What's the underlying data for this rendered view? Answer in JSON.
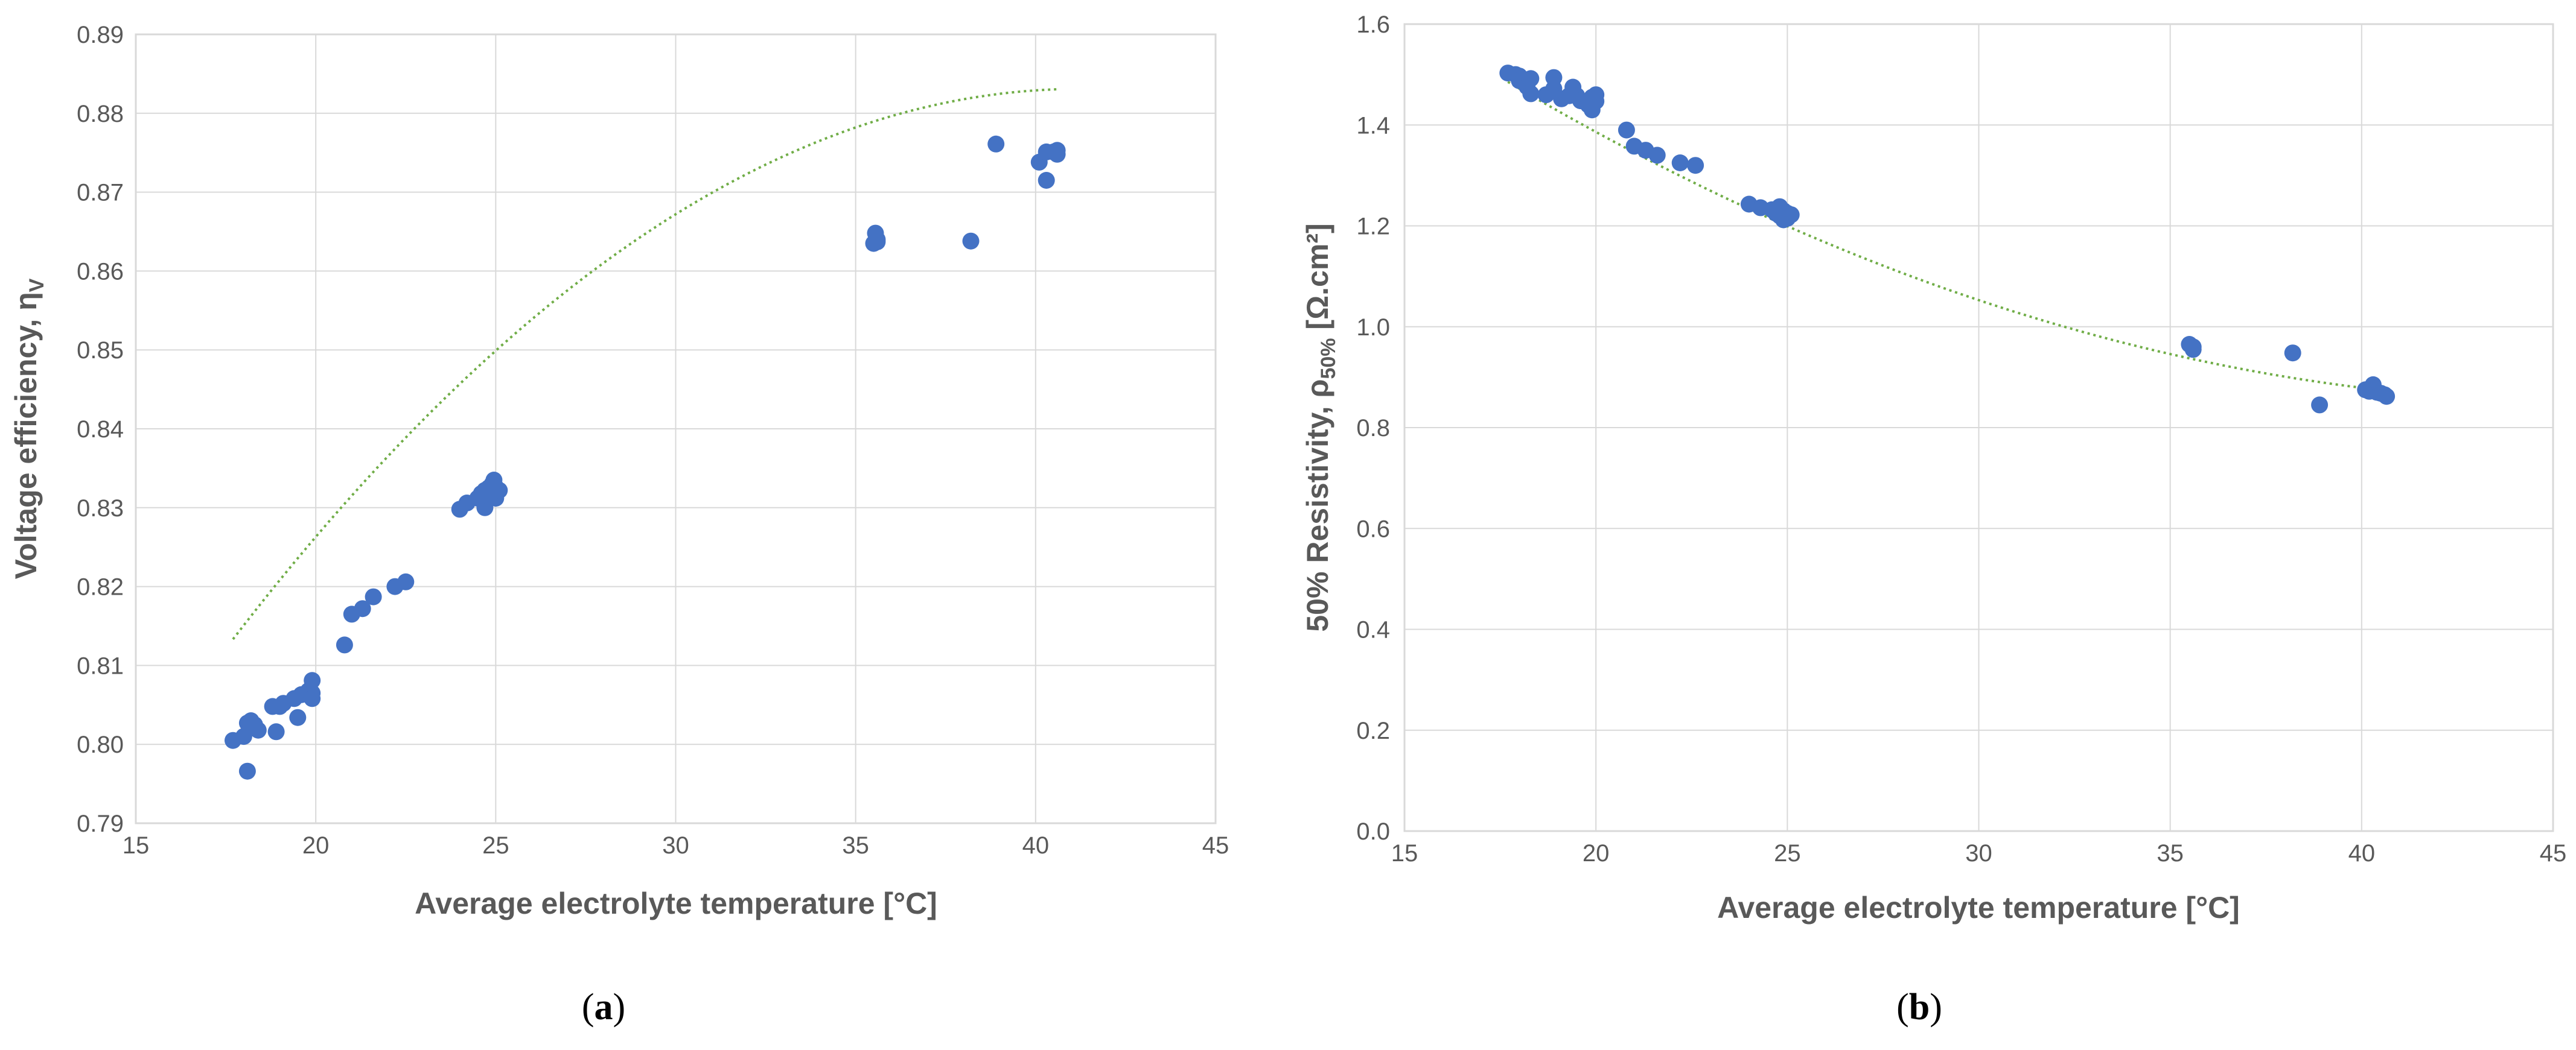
{
  "colors": {
    "point": "#4472c4",
    "trend": "#70ad47",
    "grid": "#d9d9d9",
    "text": "#595959"
  },
  "chart_data": [
    {
      "type": "scatter",
      "id": "a",
      "panel_label": {
        "open": "(",
        "letter": "a",
        "close": ")"
      },
      "xlabel": "Average electrolyte temperature [°C]",
      "ylabel": {
        "main": "Voltage efficiency, η",
        "sub": "V"
      },
      "xlim": [
        15,
        45
      ],
      "ylim": [
        0.79,
        0.89
      ],
      "xticks": [
        "15",
        "20",
        "25",
        "30",
        "35",
        "40",
        "45"
      ],
      "yticks": [
        "0.79",
        "0.80",
        "0.81",
        "0.82",
        "0.83",
        "0.84",
        "0.85",
        "0.86",
        "0.87",
        "0.88",
        "0.89"
      ],
      "xtick_values": [
        15,
        20,
        25,
        30,
        35,
        40,
        45
      ],
      "ytick_values": [
        0.79,
        0.8,
        0.81,
        0.82,
        0.83,
        0.84,
        0.85,
        0.86,
        0.87,
        0.88,
        0.89
      ],
      "trendline": {
        "type": "polynomial",
        "coefficients": [
          0.6689,
          0.01039,
          -0.000126
        ],
        "x_range": [
          17.7,
          40.6
        ]
      },
      "points": [
        [
          17.7,
          0.8005
        ],
        [
          18.0,
          0.801
        ],
        [
          18.1,
          0.8027
        ],
        [
          18.1,
          0.7966
        ],
        [
          18.2,
          0.803
        ],
        [
          18.3,
          0.8025
        ],
        [
          18.4,
          0.8018
        ],
        [
          18.8,
          0.8048
        ],
        [
          19.0,
          0.8048
        ],
        [
          18.9,
          0.8016
        ],
        [
          19.1,
          0.8052
        ],
        [
          19.4,
          0.8058
        ],
        [
          19.5,
          0.8034
        ],
        [
          19.6,
          0.8063
        ],
        [
          19.8,
          0.8068
        ],
        [
          19.9,
          0.8081
        ],
        [
          19.9,
          0.8065
        ],
        [
          19.9,
          0.8058
        ],
        [
          20.8,
          0.8126
        ],
        [
          21.0,
          0.8165
        ],
        [
          21.3,
          0.8172
        ],
        [
          21.6,
          0.8187
        ],
        [
          22.2,
          0.82
        ],
        [
          22.5,
          0.8206
        ],
        [
          24.0,
          0.8298
        ],
        [
          24.2,
          0.8306
        ],
        [
          24.5,
          0.8312
        ],
        [
          24.6,
          0.8318
        ],
        [
          24.7,
          0.8322
        ],
        [
          24.7,
          0.83
        ],
        [
          24.8,
          0.8325
        ],
        [
          24.8,
          0.8315
        ],
        [
          24.9,
          0.833
        ],
        [
          24.9,
          0.832
        ],
        [
          24.95,
          0.8335
        ],
        [
          25.0,
          0.8312
        ],
        [
          25.0,
          0.8326
        ],
        [
          25.05,
          0.832
        ],
        [
          25.1,
          0.8322
        ],
        [
          35.5,
          0.8635
        ],
        [
          35.6,
          0.864
        ],
        [
          35.55,
          0.8648
        ],
        [
          35.6,
          0.8637
        ],
        [
          38.2,
          0.8638
        ],
        [
          38.9,
          0.8761
        ],
        [
          40.1,
          0.8738
        ],
        [
          40.3,
          0.8715
        ],
        [
          40.3,
          0.8751
        ],
        [
          40.5,
          0.8751
        ],
        [
          40.6,
          0.8748
        ],
        [
          40.6,
          0.8753
        ]
      ]
    },
    {
      "type": "scatter",
      "id": "b",
      "panel_label": {
        "open": "(",
        "letter": "b",
        "close": ")"
      },
      "xlabel": "Average electrolyte temperature [°C]",
      "ylabel": {
        "main": "50% Resistivity, ρ",
        "sub": "50%",
        "unit": " [Ω.cm²]"
      },
      "xlim": [
        15,
        45
      ],
      "ylim": [
        0.0,
        1.6
      ],
      "xticks": [
        "15",
        "20",
        "25",
        "30",
        "35",
        "40",
        "45"
      ],
      "yticks": [
        "0.0",
        "0.2",
        "0.4",
        "0.6",
        "0.8",
        "1.0",
        "1.2",
        "1.4",
        "1.6"
      ],
      "xtick_values": [
        15,
        20,
        25,
        30,
        35,
        40,
        45
      ],
      "ytick_values": [
        0.0,
        0.2,
        0.4,
        0.6,
        0.8,
        1.0,
        1.2,
        1.4,
        1.6
      ],
      "trendline": {
        "type": "polynomial",
        "coefficients": [
          2.5326,
          -0.0733,
          0.000799
        ],
        "x_range": [
          17.7,
          40.6
        ]
      },
      "points": [
        [
          17.7,
          1.503
        ],
        [
          17.9,
          1.5
        ],
        [
          18.0,
          1.497
        ],
        [
          18.0,
          1.488
        ],
        [
          18.1,
          1.49
        ],
        [
          18.2,
          1.476
        ],
        [
          18.3,
          1.462
        ],
        [
          18.3,
          1.492
        ],
        [
          18.7,
          1.46
        ],
        [
          18.9,
          1.472
        ],
        [
          18.9,
          1.494
        ],
        [
          19.1,
          1.452
        ],
        [
          19.3,
          1.458
        ],
        [
          19.4,
          1.475
        ],
        [
          19.5,
          1.458
        ],
        [
          19.6,
          1.448
        ],
        [
          19.8,
          1.44
        ],
        [
          19.9,
          1.43
        ],
        [
          19.9,
          1.455
        ],
        [
          20.0,
          1.447
        ],
        [
          20.0,
          1.46
        ],
        [
          20.8,
          1.39
        ],
        [
          21.0,
          1.358
        ],
        [
          21.3,
          1.35
        ],
        [
          21.6,
          1.34
        ],
        [
          22.2,
          1.325
        ],
        [
          22.6,
          1.32
        ],
        [
          24.0,
          1.243
        ],
        [
          24.3,
          1.236
        ],
        [
          24.6,
          1.232
        ],
        [
          24.7,
          1.225
        ],
        [
          24.8,
          1.238
        ],
        [
          24.8,
          1.22
        ],
        [
          24.9,
          1.23
        ],
        [
          24.9,
          1.212
        ],
        [
          25.0,
          1.225
        ],
        [
          25.0,
          1.215
        ],
        [
          25.1,
          1.222
        ],
        [
          35.5,
          0.965
        ],
        [
          35.6,
          0.955
        ],
        [
          35.6,
          0.96
        ],
        [
          38.2,
          0.948
        ],
        [
          38.9,
          0.845
        ],
        [
          40.1,
          0.875
        ],
        [
          40.2,
          0.872
        ],
        [
          40.3,
          0.885
        ],
        [
          40.4,
          0.87
        ],
        [
          40.5,
          0.868
        ],
        [
          40.6,
          0.865
        ],
        [
          40.65,
          0.862
        ]
      ]
    }
  ]
}
